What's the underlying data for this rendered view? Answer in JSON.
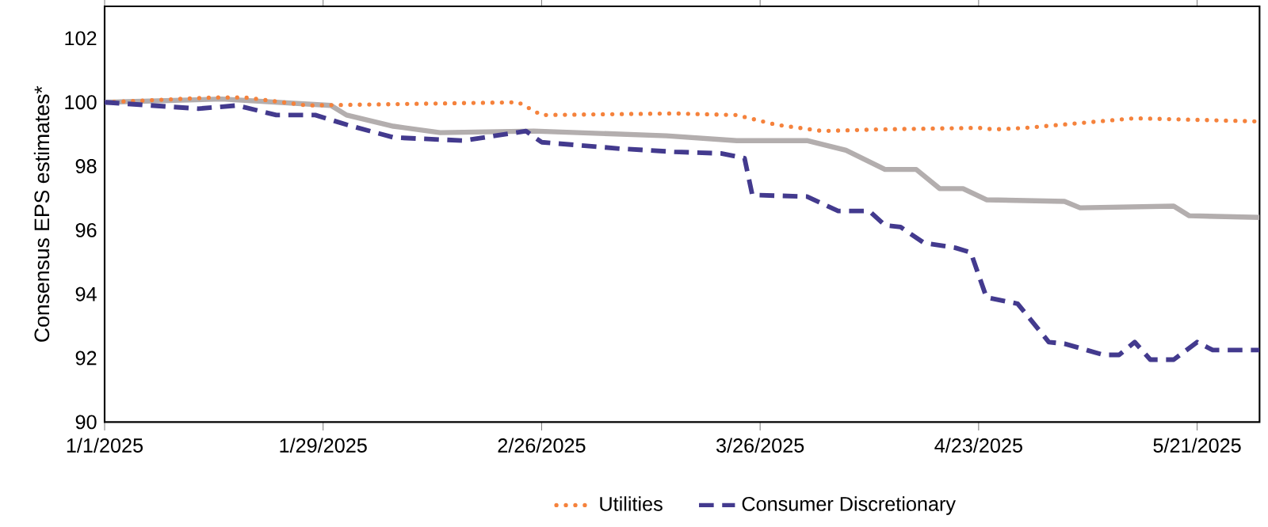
{
  "chart_data": {
    "type": "line",
    "ylabel": "Consensus EPS estimates*",
    "xlim": [
      "2025-01-01",
      "2025-05-29"
    ],
    "xticks": [
      {
        "value": "2025-01-01",
        "label": "1/1/2025"
      },
      {
        "value": "2025-01-29",
        "label": "1/29/2025"
      },
      {
        "value": "2025-02-26",
        "label": "2/26/2025"
      },
      {
        "value": "2025-03-26",
        "label": "3/26/2025"
      },
      {
        "value": "2025-04-23",
        "label": "4/23/2025"
      },
      {
        "value": "2025-05-21",
        "label": "5/21/2025"
      }
    ],
    "ylim": [
      90,
      103
    ],
    "yticks": [
      90,
      92,
      94,
      96,
      98,
      100,
      102
    ],
    "grid": false,
    "legend": "bottom",
    "marker": "none",
    "series": [
      {
        "color": "#b3aeae",
        "line_style": "solid",
        "x": [
          "2025-01-01",
          "2025-01-16",
          "2025-01-30",
          "2025-02-01",
          "2025-02-07",
          "2025-02-13",
          "2025-02-25",
          "2025-03-14",
          "2025-03-23",
          "2025-04-01",
          "2025-04-06",
          "2025-04-11",
          "2025-04-15",
          "2025-04-18",
          "2025-04-21",
          "2025-04-24",
          "2025-05-04",
          "2025-05-06",
          "2025-05-18",
          "2025-05-20",
          "2025-05-29"
        ],
        "values": [
          100,
          100.1,
          99.9,
          99.6,
          99.25,
          99.05,
          99.1,
          98.95,
          98.8,
          98.8,
          98.5,
          97.9,
          97.9,
          97.3,
          97.3,
          96.95,
          96.9,
          96.7,
          96.75,
          96.45,
          96.4
        ]
      },
      {
        "name": "Utilities",
        "color": "#f5823c",
        "line_style": "dotted",
        "x": [
          "2025-01-01",
          "2025-01-15",
          "2025-01-19",
          "2025-01-27",
          "2025-02-23",
          "2025-02-26",
          "2025-03-15",
          "2025-03-23",
          "2025-03-28",
          "2025-04-03",
          "2025-04-10",
          "2025-04-23",
          "2025-04-25",
          "2025-04-29",
          "2025-05-13",
          "2025-05-29"
        ],
        "values": [
          100,
          100.15,
          100.15,
          99.9,
          100,
          99.6,
          99.65,
          99.6,
          99.3,
          99.1,
          99.15,
          99.2,
          99.15,
          99.2,
          99.5,
          99.4
        ]
      },
      {
        "name": "Consumer Discretionary",
        "color": "#433a8e",
        "line_style": "dashed",
        "x": [
          "2025-01-01",
          "2025-01-13",
          "2025-01-18",
          "2025-01-23",
          "2025-01-28",
          "2025-02-01",
          "2025-02-07",
          "2025-02-16",
          "2025-02-24",
          "2025-02-26",
          "2025-03-08",
          "2025-03-15",
          "2025-03-21",
          "2025-03-24",
          "2025-03-25",
          "2025-04-01",
          "2025-04-05",
          "2025-04-09",
          "2025-04-11",
          "2025-04-13",
          "2025-04-16",
          "2025-04-20",
          "2025-04-22",
          "2025-04-24",
          "2025-04-28",
          "2025-05-02",
          "2025-05-04",
          "2025-05-09",
          "2025-05-11",
          "2025-05-13",
          "2025-05-15",
          "2025-05-18",
          "2025-05-21",
          "2025-05-23",
          "2025-05-29"
        ],
        "values": [
          100,
          99.8,
          99.9,
          99.6,
          99.6,
          99.3,
          98.9,
          98.8,
          99.1,
          98.75,
          98.55,
          98.45,
          98.4,
          98.25,
          97.1,
          97.05,
          96.6,
          96.6,
          96.15,
          96.1,
          95.6,
          95.45,
          95.3,
          93.9,
          93.7,
          92.5,
          92.45,
          92.1,
          92.1,
          92.5,
          91.95,
          91.95,
          92.5,
          92.25,
          92.25
        ]
      }
    ]
  }
}
